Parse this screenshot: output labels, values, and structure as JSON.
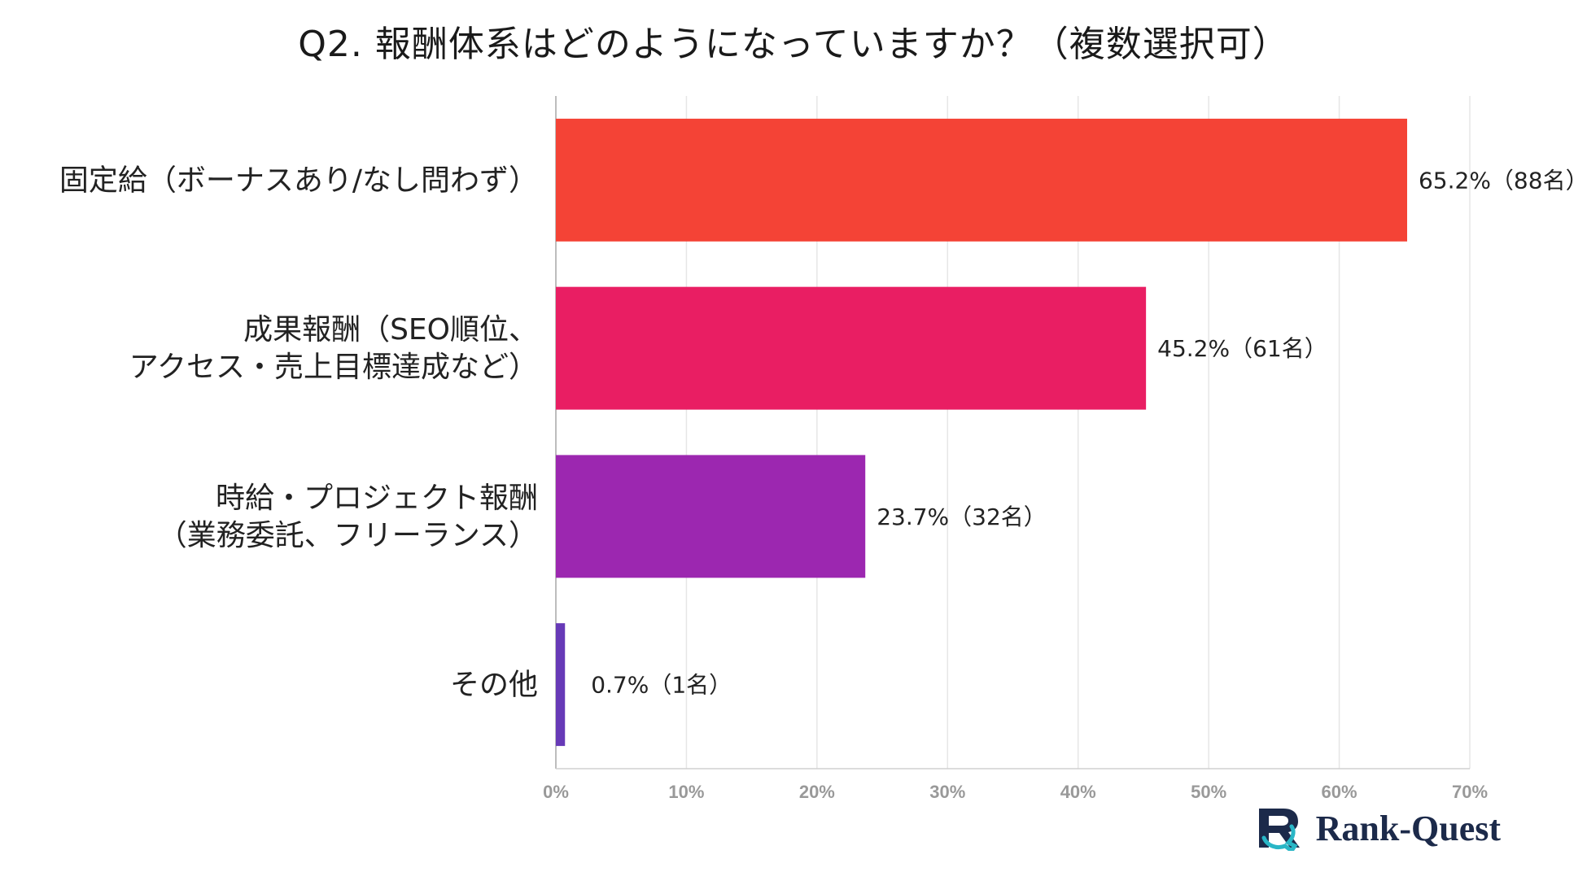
{
  "chart_data": {
    "type": "bar",
    "orientation": "horizontal",
    "title": "Q2. 報酬体系はどのようになっていますか？（複数選択可）",
    "categories": [
      [
        "固定給（ボーナスあり/なし問わず）"
      ],
      [
        "成果報酬（SEO順位、",
        "アクセス・売上目標達成など）"
      ],
      [
        "時給・プロジェクト報酬",
        "（業務委託、フリーランス）"
      ],
      [
        "その他"
      ]
    ],
    "values": [
      65.2,
      45.2,
      23.7,
      0.7
    ],
    "data_labels": [
      "65.2%（88名）",
      "45.2%（61名）",
      "23.7%（32名）",
      "0.7%（1名）"
    ],
    "colors": [
      "#f44336",
      "#e91e63",
      "#9c27b0",
      "#673ab7"
    ],
    "xlim": [
      0,
      70
    ],
    "xticks": [
      0,
      10,
      20,
      30,
      40,
      50,
      60,
      70
    ],
    "xtick_labels": [
      "0%",
      "10%",
      "20%",
      "30%",
      "40%",
      "50%",
      "60%",
      "70%"
    ],
    "grid": true,
    "xlabel": "",
    "ylabel": ""
  },
  "logo": {
    "text": "Rank-Quest",
    "colors": {
      "primary": "#1c2a4a",
      "accent": "#29b6c6"
    }
  }
}
